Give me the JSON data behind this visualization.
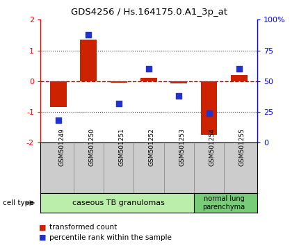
{
  "title": "GDS4256 / Hs.164175.0.A1_3p_at",
  "samples": [
    "GSM501249",
    "GSM501250",
    "GSM501251",
    "GSM501252",
    "GSM501253",
    "GSM501254",
    "GSM501255"
  ],
  "transformed_counts": [
    -0.85,
    1.35,
    -0.05,
    0.1,
    -0.08,
    -1.75,
    0.2
  ],
  "percentile_ranks": [
    18,
    88,
    32,
    60,
    38,
    24,
    60
  ],
  "ylim_left": [
    -2,
    2
  ],
  "ylim_right": [
    0,
    100
  ],
  "bar_color": "#CC2200",
  "dot_color": "#2233CC",
  "zero_line_color": "#CC0000",
  "grid_color": "#333333",
  "cell_group1_color": "#BBEEAA",
  "cell_group2_color": "#77CC77",
  "cell_group1_label": "caseous TB granulomas",
  "cell_group2_label": "normal lung\nparenchyma",
  "cell_group1_samples": 5,
  "cell_group2_samples": 2,
  "legend_bar_label": "transformed count",
  "legend_dot_label": "percentile rank within the sample",
  "bar_width": 0.55
}
